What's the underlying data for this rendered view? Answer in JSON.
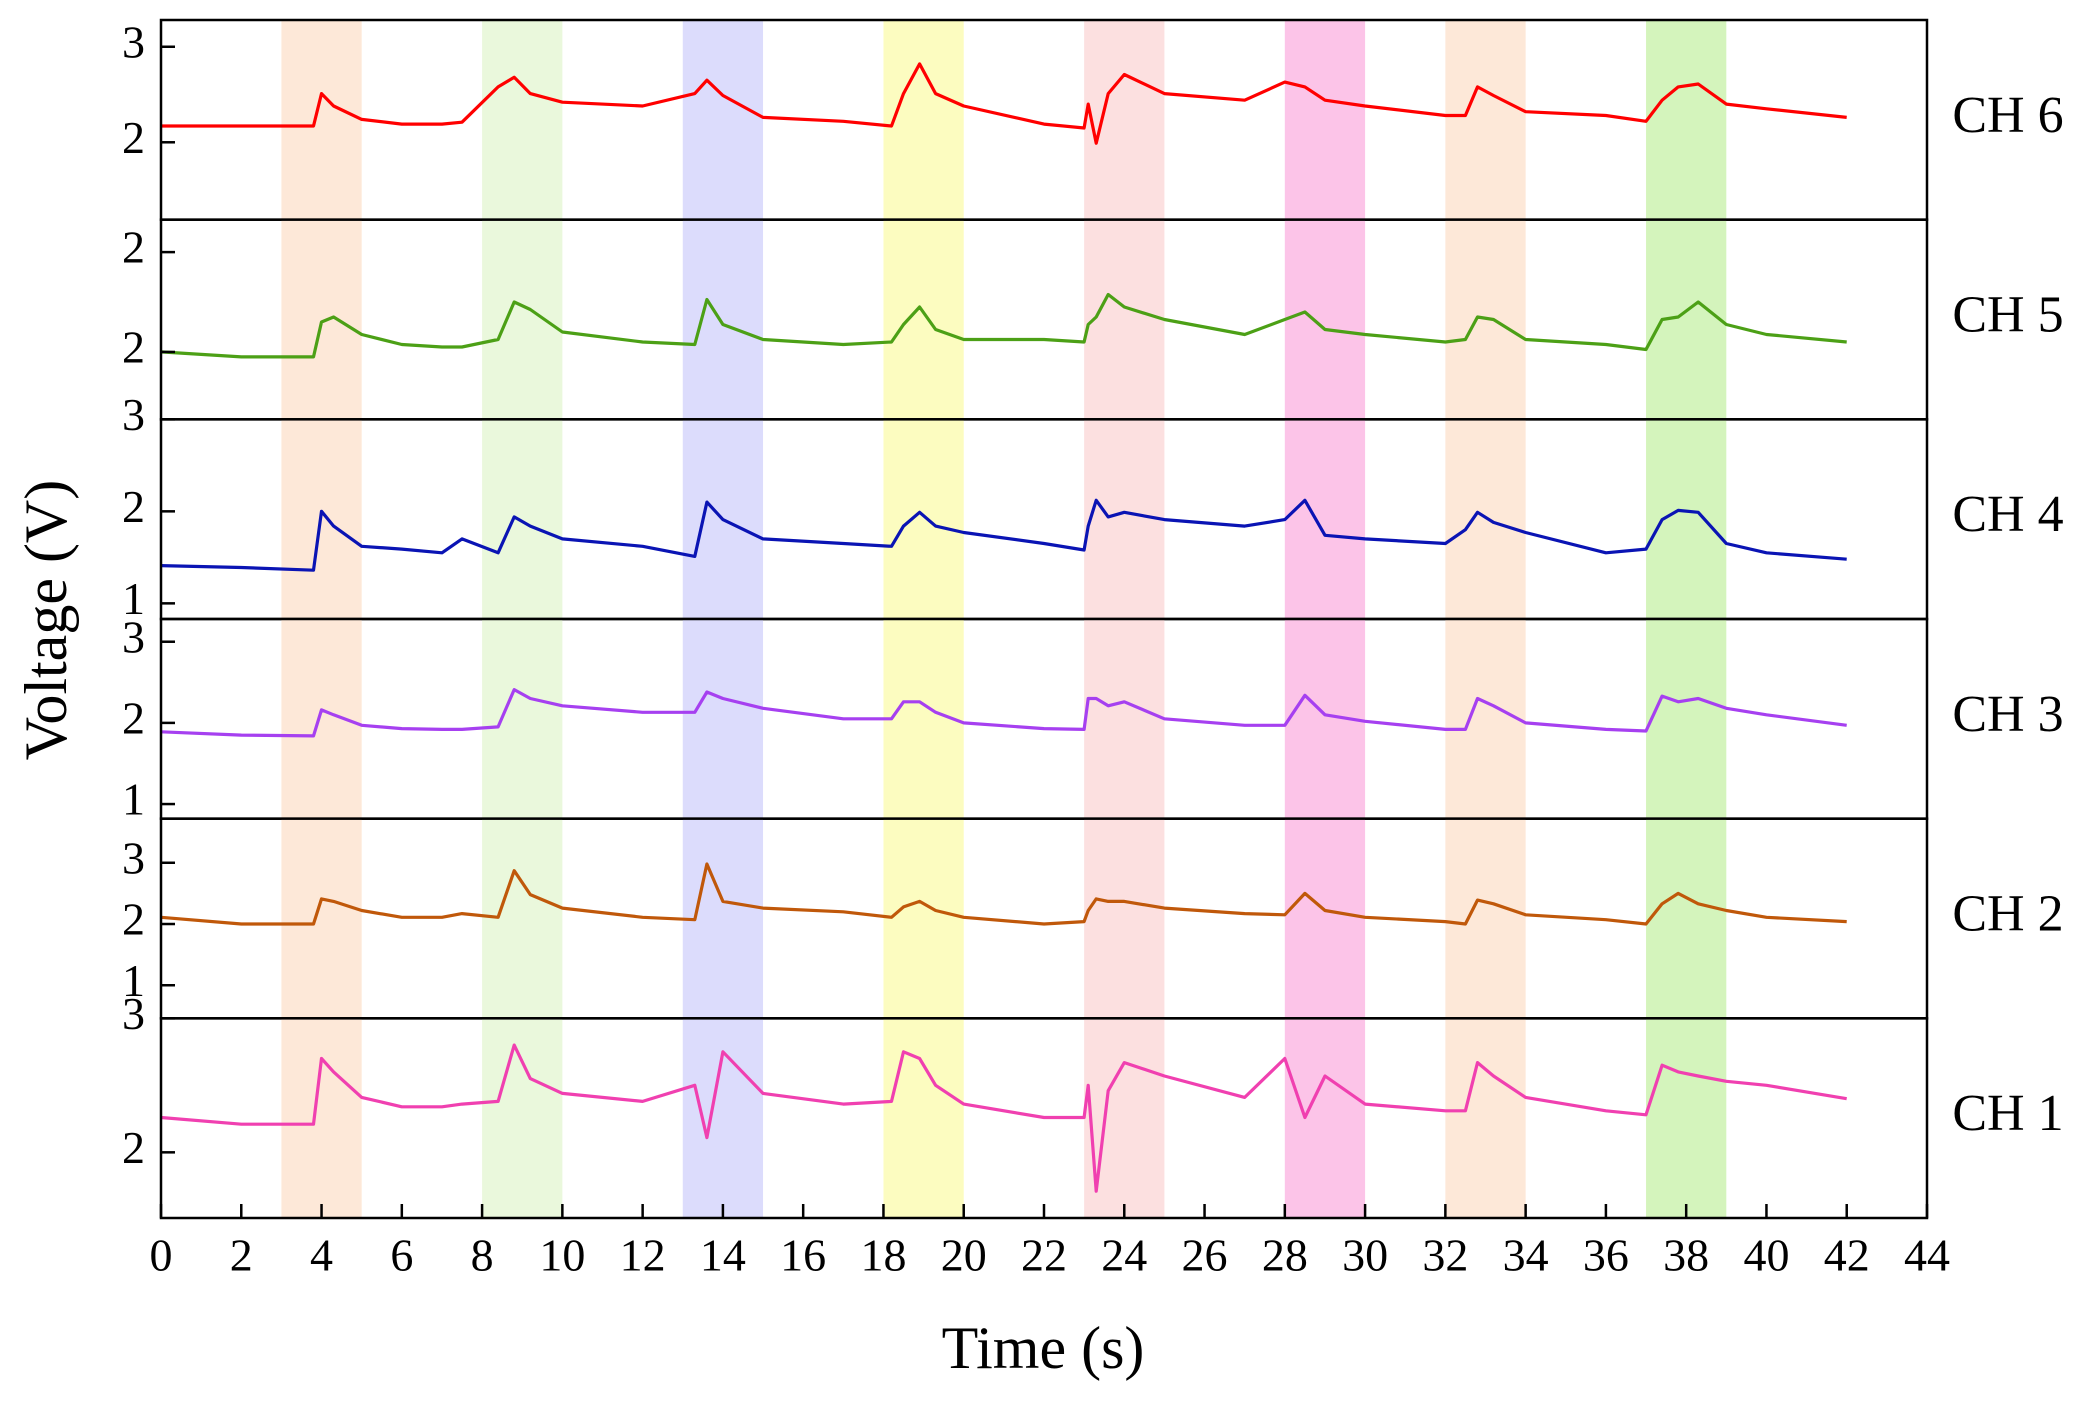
{
  "chart_data": {
    "type": "line",
    "xlabel": "Time (s)",
    "ylabel": "Voltage (V)",
    "xlim": [
      0,
      44
    ],
    "xticks": [
      0,
      2,
      4,
      6,
      8,
      10,
      12,
      14,
      16,
      18,
      20,
      22,
      24,
      26,
      28,
      30,
      32,
      34,
      36,
      38,
      40,
      42,
      44
    ],
    "bands": [
      {
        "xlim": [
          3,
          5
        ],
        "color": "#fde8d8"
      },
      {
        "xlim": [
          8,
          10
        ],
        "color": "#eaf8dc"
      },
      {
        "xlim": [
          13,
          15
        ],
        "color": "#dcdcfc"
      },
      {
        "xlim": [
          18,
          20
        ],
        "color": "#fcfcc0"
      },
      {
        "xlim": [
          23,
          25
        ],
        "color": "#fce0e0"
      },
      {
        "xlim": [
          28,
          30
        ],
        "color": "#fcc4e8"
      },
      {
        "xlim": [
          32,
          34
        ],
        "color": "#fde8d8"
      },
      {
        "xlim": [
          37,
          39
        ],
        "color": "#d4f4bc"
      }
    ],
    "x": [
      0,
      2,
      3.8,
      4,
      4.3,
      5,
      6,
      7,
      7.5,
      8.4,
      8.8,
      9.2,
      10,
      12,
      13.3,
      13.6,
      14,
      15,
      17,
      18.2,
      18.5,
      18.9,
      19.3,
      20,
      22,
      23,
      23.1,
      23.3,
      23.6,
      24,
      25,
      27,
      28,
      28.5,
      29,
      30,
      32,
      32.5,
      32.8,
      33.2,
      34,
      36,
      37,
      37.4,
      37.8,
      38.3,
      39,
      40,
      42
    ],
    "panels": [
      {
        "name": "CH 6",
        "color": "#ff0000",
        "ylim": [
          1.19,
          3.28
        ],
        "yticks": [
          2,
          3
        ],
        "values": [
          2.17,
          2.17,
          2.17,
          2.51,
          2.38,
          2.24,
          2.19,
          2.19,
          2.21,
          2.58,
          2.68,
          2.51,
          2.42,
          2.38,
          2.51,
          2.65,
          2.49,
          2.26,
          2.22,
          2.17,
          2.51,
          2.82,
          2.51,
          2.38,
          2.19,
          2.15,
          2.4,
          1.99,
          2.51,
          2.71,
          2.51,
          2.44,
          2.63,
          2.58,
          2.44,
          2.38,
          2.28,
          2.28,
          2.58,
          2.49,
          2.32,
          2.28,
          2.22,
          2.44,
          2.58,
          2.61,
          2.4,
          2.35,
          2.26
        ]
      },
      {
        "name": "CH 5",
        "color": "#4ca016",
        "ylim": [
          1.73,
          2.53
        ],
        "yticks": [
          2,
          {
            "value": 2.4,
            "label": "2"
          }
        ],
        "values": [
          2.0,
          1.98,
          1.98,
          2.12,
          2.14,
          2.07,
          2.03,
          2.02,
          2.02,
          2.05,
          2.2,
          2.17,
          2.08,
          2.04,
          2.03,
          2.21,
          2.11,
          2.05,
          2.03,
          2.04,
          2.11,
          2.18,
          2.09,
          2.05,
          2.05,
          2.04,
          2.11,
          2.14,
          2.23,
          2.18,
          2.13,
          2.07,
          2.13,
          2.16,
          2.09,
          2.07,
          2.04,
          2.05,
          2.14,
          2.13,
          2.05,
          2.03,
          2.01,
          2.13,
          2.14,
          2.2,
          2.11,
          2.07,
          2.04
        ]
      },
      {
        "name": "CH 4",
        "color": "#0a14b4",
        "ylim": [
          0.83,
          3.0
        ],
        "yticks": [
          1,
          2,
          3
        ],
        "values": [
          1.41,
          1.39,
          1.36,
          2.0,
          1.84,
          1.62,
          1.59,
          1.55,
          1.7,
          1.55,
          1.94,
          1.84,
          1.7,
          1.62,
          1.51,
          2.1,
          1.91,
          1.7,
          1.65,
          1.62,
          1.84,
          1.99,
          1.84,
          1.77,
          1.65,
          1.58,
          1.84,
          2.12,
          1.94,
          1.99,
          1.91,
          1.84,
          1.91,
          2.12,
          1.74,
          1.7,
          1.65,
          1.8,
          1.99,
          1.88,
          1.77,
          1.55,
          1.59,
          1.91,
          2.01,
          1.99,
          1.65,
          1.55,
          1.48
        ]
      },
      {
        "name": "CH 3",
        "color": "#a640f0",
        "ylim": [
          0.82,
          3.28
        ],
        "yticks": [
          1,
          2,
          3
        ],
        "values": [
          1.89,
          1.85,
          1.84,
          2.16,
          2.1,
          1.97,
          1.93,
          1.92,
          1.92,
          1.95,
          2.41,
          2.3,
          2.21,
          2.13,
          2.13,
          2.38,
          2.3,
          2.18,
          2.05,
          2.05,
          2.26,
          2.26,
          2.13,
          2.0,
          1.93,
          1.92,
          2.3,
          2.3,
          2.21,
          2.26,
          2.05,
          1.97,
          1.97,
          2.34,
          2.1,
          2.02,
          1.92,
          1.92,
          2.3,
          2.21,
          2.0,
          1.92,
          1.9,
          2.33,
          2.26,
          2.3,
          2.18,
          2.1,
          1.97
        ]
      },
      {
        "name": "CH 2",
        "color": "#c0580a",
        "ylim": [
          0.46,
          3.72
        ],
        "yticks": [
          1,
          2,
          3
        ],
        "values": [
          2.11,
          2.0,
          2.0,
          2.41,
          2.37,
          2.22,
          2.11,
          2.11,
          2.17,
          2.11,
          2.87,
          2.48,
          2.26,
          2.11,
          2.07,
          2.98,
          2.37,
          2.26,
          2.2,
          2.11,
          2.28,
          2.37,
          2.22,
          2.11,
          2.0,
          2.04,
          2.22,
          2.41,
          2.37,
          2.37,
          2.26,
          2.17,
          2.15,
          2.5,
          2.22,
          2.11,
          2.04,
          2.0,
          2.39,
          2.33,
          2.15,
          2.07,
          2.0,
          2.33,
          2.5,
          2.33,
          2.22,
          2.11,
          2.04
        ]
      },
      {
        "name": "CH 1",
        "color": "#f040b0",
        "ylim": [
          1.51,
          3.0
        ],
        "yticks": [
          2,
          3
        ],
        "values": [
          2.26,
          2.21,
          2.21,
          2.7,
          2.6,
          2.41,
          2.34,
          2.34,
          2.36,
          2.38,
          2.8,
          2.55,
          2.44,
          2.38,
          2.5,
          2.11,
          2.75,
          2.44,
          2.36,
          2.38,
          2.75,
          2.7,
          2.5,
          2.36,
          2.26,
          2.26,
          2.5,
          1.71,
          2.46,
          2.67,
          2.57,
          2.41,
          2.7,
          2.26,
          2.57,
          2.36,
          2.31,
          2.31,
          2.67,
          2.57,
          2.41,
          2.31,
          2.28,
          2.65,
          2.6,
          2.57,
          2.53,
          2.5,
          2.4
        ]
      }
    ]
  }
}
